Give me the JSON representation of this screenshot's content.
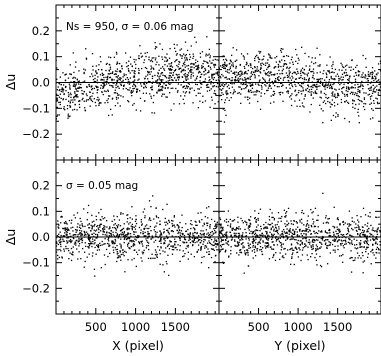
{
  "chart_data": [
    {
      "type": "scatter",
      "panel": "top-left",
      "annotation": "Ns = 950, σ = 0.06 mag",
      "ylabel": "Δu",
      "xlim": [
        0,
        2048
      ],
      "ylim": [
        -0.3,
        0.3
      ],
      "yticks": [
        "−0.2",
        "−0.1",
        "0.0",
        "0.1",
        "0.2"
      ],
      "zero_line": true,
      "n_points": 950,
      "trend": {
        "x": [
          0,
          200,
          400,
          600,
          800,
          1000,
          1200,
          1400,
          1600,
          1800,
          2048
        ],
        "y": [
          -0.05,
          -0.04,
          -0.025,
          -0.01,
          0.0,
          0.015,
          0.025,
          0.035,
          0.04,
          0.035,
          0.03
        ]
      },
      "scatter_sigma": 0.05
    },
    {
      "type": "scatter",
      "panel": "top-right",
      "xlim": [
        0,
        2048
      ],
      "ylim": [
        -0.3,
        0.3
      ],
      "zero_line": true,
      "n_points": 950,
      "trend": {
        "x": [
          0,
          200,
          400,
          600,
          800,
          1000,
          1200,
          1400,
          1600,
          1800,
          2048
        ],
        "y": [
          0.01,
          0.02,
          0.02,
          0.02,
          0.02,
          0.015,
          0.0,
          -0.015,
          -0.02,
          -0.025,
          -0.025
        ]
      },
      "scatter_sigma": 0.05
    },
    {
      "type": "scatter",
      "panel": "bottom-left",
      "annotation": "σ = 0.05 mag",
      "ylabel": "Δu",
      "xlabel": "X (pixel)",
      "xlim": [
        0,
        2048
      ],
      "ylim": [
        -0.3,
        0.3
      ],
      "xticks": [
        "500",
        "1000",
        "1500"
      ],
      "yticks": [
        "−0.2",
        "−0.1",
        "0.0",
        "0.1",
        "0.2"
      ],
      "zero_line": true,
      "n_points": 950,
      "trend": {
        "x": [
          0,
          2048
        ],
        "y": [
          0.0,
          0.0
        ]
      },
      "scatter_sigma": 0.045
    },
    {
      "type": "scatter",
      "panel": "bottom-right",
      "xlabel": "Y (pixel)",
      "xlim": [
        0,
        2048
      ],
      "ylim": [
        -0.3,
        0.3
      ],
      "xticks": [
        "500",
        "1000",
        "1500"
      ],
      "zero_line": true,
      "n_points": 950,
      "trend": {
        "x": [
          0,
          2048
        ],
        "y": [
          0.0,
          0.0
        ]
      },
      "scatter_sigma": 0.045
    }
  ],
  "colors": {
    "points": "#000000",
    "axes": "#000000",
    "background": "#ffffff"
  }
}
